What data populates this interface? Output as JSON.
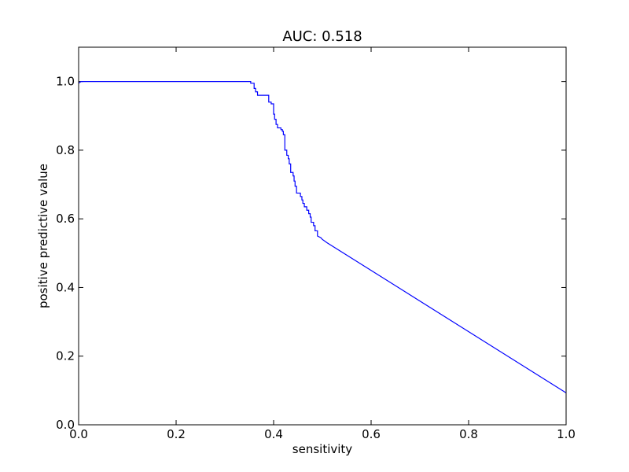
{
  "chart_data": {
    "type": "line",
    "title": "AUC: 0.518",
    "xlabel": "sensitivity",
    "ylabel": "positive predictive value",
    "xlim": [
      0.0,
      1.0
    ],
    "ylim": [
      0.0,
      1.1
    ],
    "x_ticks": [
      0.0,
      0.2,
      0.4,
      0.6,
      0.8,
      1.0
    ],
    "y_ticks": [
      0.0,
      0.2,
      0.4,
      0.6,
      0.8,
      1.0
    ],
    "x_tick_labels": [
      "0.0",
      "0.2",
      "0.4",
      "0.6",
      "0.8",
      "1.0"
    ],
    "y_tick_labels": [
      "0.0",
      "0.2",
      "0.4",
      "0.6",
      "0.8",
      "1.0"
    ],
    "grid": false,
    "legend": "none",
    "series": [
      {
        "color": "#0000ff",
        "points": [
          [
            0.0,
            0.995
          ],
          [
            0.005,
            1.0
          ],
          [
            0.353,
            1.0
          ],
          [
            0.353,
            0.995
          ],
          [
            0.36,
            0.995
          ],
          [
            0.36,
            0.98
          ],
          [
            0.363,
            0.98
          ],
          [
            0.363,
            0.97
          ],
          [
            0.367,
            0.97
          ],
          [
            0.367,
            0.96
          ],
          [
            0.39,
            0.96
          ],
          [
            0.39,
            0.94
          ],
          [
            0.395,
            0.94
          ],
          [
            0.395,
            0.935
          ],
          [
            0.4,
            0.935
          ],
          [
            0.4,
            0.905
          ],
          [
            0.402,
            0.905
          ],
          [
            0.402,
            0.89
          ],
          [
            0.405,
            0.89
          ],
          [
            0.405,
            0.875
          ],
          [
            0.408,
            0.875
          ],
          [
            0.408,
            0.865
          ],
          [
            0.415,
            0.865
          ],
          [
            0.415,
            0.86
          ],
          [
            0.418,
            0.86
          ],
          [
            0.418,
            0.855
          ],
          [
            0.42,
            0.855
          ],
          [
            0.42,
            0.845
          ],
          [
            0.423,
            0.845
          ],
          [
            0.423,
            0.8
          ],
          [
            0.427,
            0.8
          ],
          [
            0.427,
            0.785
          ],
          [
            0.43,
            0.785
          ],
          [
            0.43,
            0.775
          ],
          [
            0.432,
            0.775
          ],
          [
            0.432,
            0.76
          ],
          [
            0.435,
            0.76
          ],
          [
            0.435,
            0.735
          ],
          [
            0.44,
            0.735
          ],
          [
            0.44,
            0.725
          ],
          [
            0.442,
            0.725
          ],
          [
            0.442,
            0.71
          ],
          [
            0.444,
            0.71
          ],
          [
            0.444,
            0.695
          ],
          [
            0.447,
            0.695
          ],
          [
            0.447,
            0.675
          ],
          [
            0.455,
            0.675
          ],
          [
            0.455,
            0.665
          ],
          [
            0.458,
            0.665
          ],
          [
            0.458,
            0.655
          ],
          [
            0.46,
            0.655
          ],
          [
            0.46,
            0.645
          ],
          [
            0.463,
            0.645
          ],
          [
            0.463,
            0.635
          ],
          [
            0.468,
            0.635
          ],
          [
            0.468,
            0.625
          ],
          [
            0.472,
            0.625
          ],
          [
            0.472,
            0.615
          ],
          [
            0.475,
            0.615
          ],
          [
            0.475,
            0.605
          ],
          [
            0.477,
            0.605
          ],
          [
            0.477,
            0.59
          ],
          [
            0.482,
            0.59
          ],
          [
            0.482,
            0.58
          ],
          [
            0.485,
            0.58
          ],
          [
            0.485,
            0.565
          ],
          [
            0.49,
            0.565
          ],
          [
            0.49,
            0.55
          ],
          [
            0.497,
            0.545
          ],
          [
            0.5,
            0.54
          ],
          [
            0.51,
            0.53
          ],
          [
            1.0,
            0.093
          ]
        ]
      }
    ]
  }
}
